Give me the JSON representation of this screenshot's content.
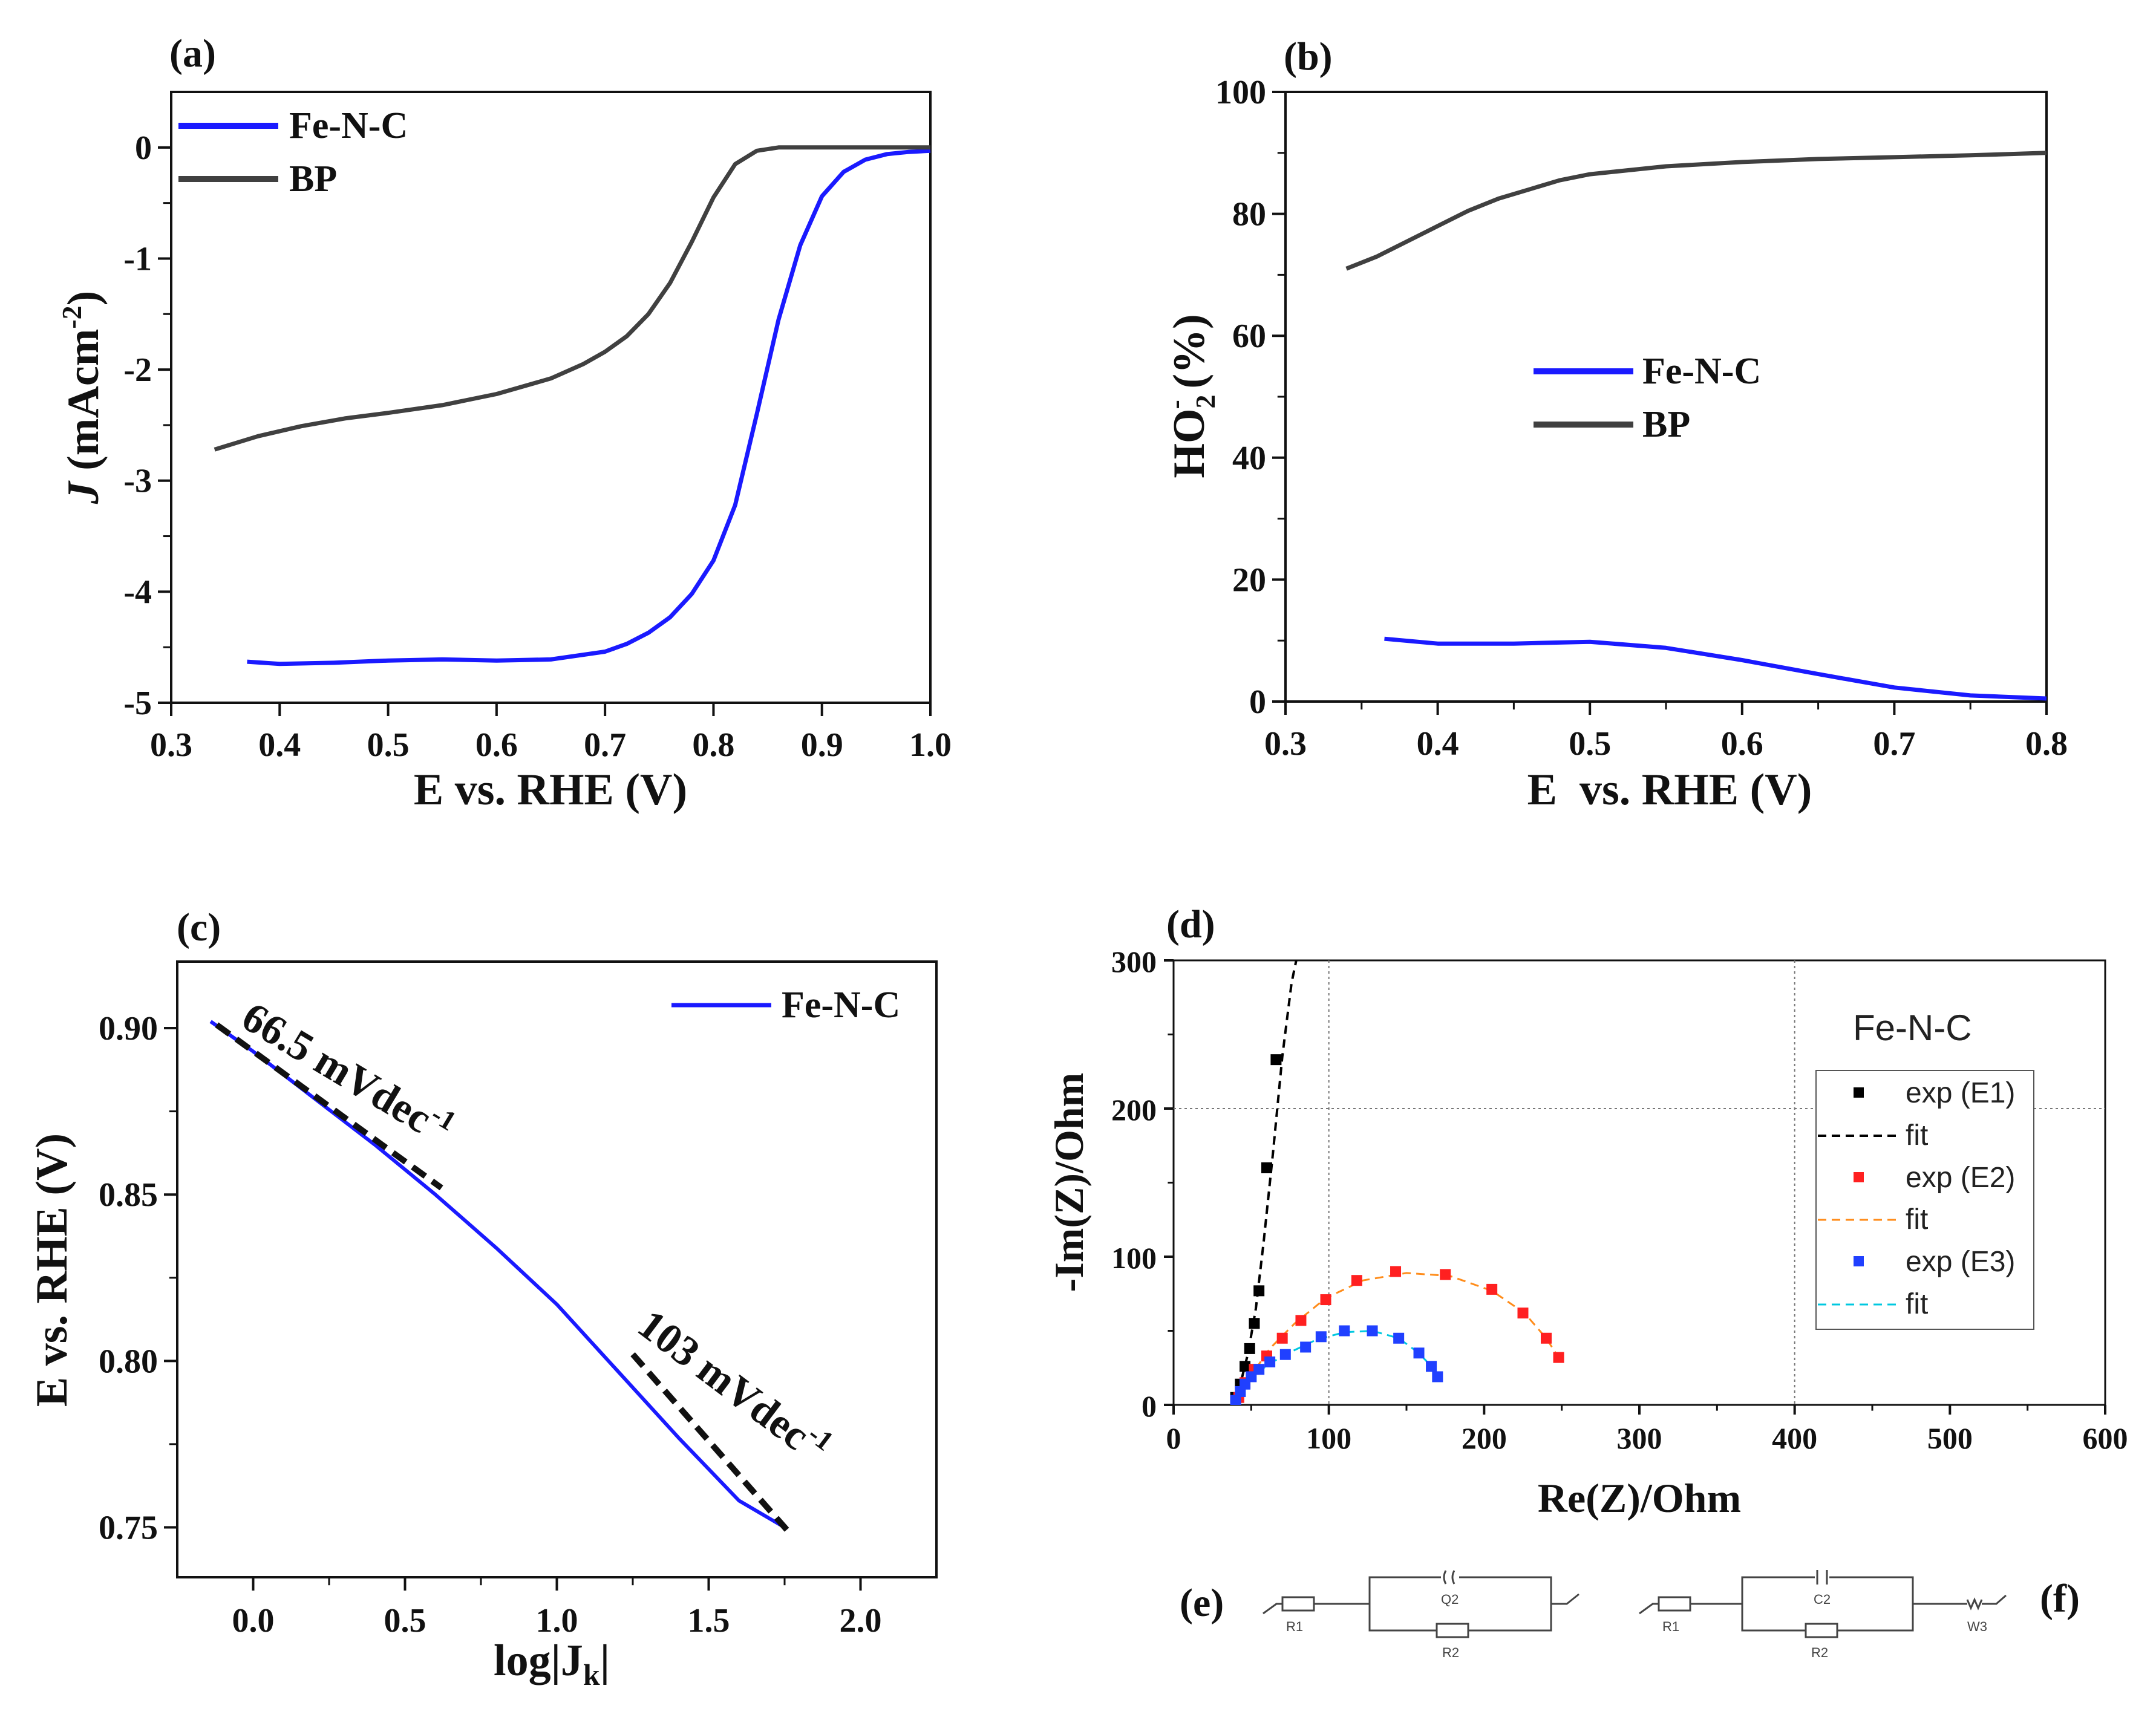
{
  "chart_data": [
    {
      "panel": "(a)",
      "type": "line",
      "xlabel": "E vs. RHE (V)",
      "ylabel": "J (mAcm-2)",
      "ylabel_parts": {
        "j": "J",
        "unit": " (mAcm",
        "sup": "-2",
        "close": ")"
      },
      "xlim": [
        0.3,
        1.0
      ],
      "ylim": [
        -5,
        0.5
      ],
      "xticks": [
        0.3,
        0.4,
        0.5,
        0.6,
        0.7,
        0.8,
        0.9,
        1.0
      ],
      "xtick_labels": [
        "0.3",
        "0.4",
        "0.5",
        "0.6",
        "0.7",
        "0.8",
        "0.9",
        "1.0"
      ],
      "yticks": [
        0,
        -1,
        -2,
        -3,
        -4,
        -5
      ],
      "ytick_labels": [
        "0",
        "-1",
        "-2",
        "-3",
        "-4",
        "-5"
      ],
      "legend_position": "top-left",
      "series": [
        {
          "name": "Fe-N-C",
          "color": "#1a1aff",
          "x": [
            0.37,
            0.4,
            0.45,
            0.5,
            0.55,
            0.6,
            0.65,
            0.7,
            0.72,
            0.74,
            0.76,
            0.78,
            0.8,
            0.82,
            0.84,
            0.86,
            0.88,
            0.9,
            0.92,
            0.94,
            0.96,
            0.98,
            1.0
          ],
          "y": [
            -4.63,
            -4.65,
            -4.64,
            -4.62,
            -4.61,
            -4.62,
            -4.61,
            -4.54,
            -4.47,
            -4.37,
            -4.23,
            -4.02,
            -3.72,
            -3.22,
            -2.4,
            -1.55,
            -0.88,
            -0.44,
            -0.22,
            -0.11,
            -0.06,
            -0.04,
            -0.03
          ]
        },
        {
          "name": "BP",
          "color": "#404040",
          "x": [
            0.34,
            0.38,
            0.42,
            0.46,
            0.5,
            0.55,
            0.6,
            0.65,
            0.68,
            0.7,
            0.72,
            0.74,
            0.76,
            0.78,
            0.8,
            0.82,
            0.84,
            0.86,
            0.88,
            0.9,
            0.95,
            1.0
          ],
          "y": [
            -2.72,
            -2.6,
            -2.51,
            -2.44,
            -2.39,
            -2.32,
            -2.22,
            -2.08,
            -1.95,
            -1.84,
            -1.7,
            -1.5,
            -1.22,
            -0.85,
            -0.45,
            -0.15,
            -0.03,
            0.0,
            0.0,
            0.0,
            0.0,
            0.0
          ]
        }
      ]
    },
    {
      "panel": "(b)",
      "type": "line",
      "xlabel": "E  vs. RHE (V)",
      "ylabel": "HO2- (%)",
      "ylabel_parts": {
        "ho": "HO",
        "sub": "2",
        "sup": "-",
        "unit": " (%)"
      },
      "xlim": [
        0.3,
        0.8
      ],
      "ylim": [
        0,
        100
      ],
      "xticks": [
        0.3,
        0.4,
        0.5,
        0.6,
        0.7,
        0.8
      ],
      "xtick_labels": [
        "0.3",
        "0.4",
        "0.5",
        "0.6",
        "0.7",
        "0.8"
      ],
      "yticks": [
        0,
        20,
        40,
        60,
        80,
        100
      ],
      "ytick_labels": [
        "0",
        "20",
        "40",
        "60",
        "80",
        "100"
      ],
      "legend_position": "center-left",
      "series": [
        {
          "name": "Fe-N-C",
          "color": "#1a1aff",
          "x": [
            0.365,
            0.4,
            0.45,
            0.5,
            0.55,
            0.6,
            0.65,
            0.7,
            0.75,
            0.8
          ],
          "y": [
            10.3,
            9.5,
            9.5,
            9.8,
            8.8,
            6.8,
            4.5,
            2.3,
            1.0,
            0.5
          ]
        },
        {
          "name": "BP",
          "color": "#404040",
          "x": [
            0.34,
            0.36,
            0.38,
            0.4,
            0.42,
            0.44,
            0.46,
            0.48,
            0.5,
            0.55,
            0.6,
            0.65,
            0.7,
            0.75,
            0.8
          ],
          "y": [
            71.0,
            73.0,
            75.5,
            78.0,
            80.5,
            82.5,
            84.0,
            85.5,
            86.5,
            87.8,
            88.5,
            89.0,
            89.3,
            89.6,
            90.0
          ]
        }
      ]
    },
    {
      "panel": "(c)",
      "type": "line",
      "xlabel": "log|Jk|",
      "xlabel_parts": {
        "main": "log|J",
        "sub": "k",
        "close": "|"
      },
      "ylabel": "E vs. RHE (V)",
      "xlim": [
        -0.25,
        2.25
      ],
      "ylim": [
        0.735,
        0.92
      ],
      "xticks": [
        0.0,
        0.5,
        1.0,
        1.5,
        2.0
      ],
      "xtick_labels": [
        "0.0",
        "0.5",
        "1.0",
        "1.5",
        "2.0"
      ],
      "yticks": [
        0.75,
        0.8,
        0.85,
        0.9
      ],
      "ytick_labels": [
        "0.75",
        "0.80",
        "0.85",
        "0.90"
      ],
      "legend_position": "top-right",
      "series": [
        {
          "name": "Fe-N-C",
          "color": "#1a1aff",
          "x": [
            -0.14,
            0.0,
            0.2,
            0.4,
            0.6,
            0.8,
            1.0,
            1.2,
            1.4,
            1.6,
            1.75
          ],
          "y": [
            0.902,
            0.893,
            0.879,
            0.865,
            0.85,
            0.834,
            0.817,
            0.797,
            0.777,
            0.758,
            0.75
          ]
        }
      ],
      "fits": [
        {
          "label": "66.5 mVdec-1",
          "text_main": "66.5 mVdec",
          "text_sup": "-1",
          "x": [
            -0.12,
            0.62
          ],
          "y": [
            0.901,
            0.852
          ]
        },
        {
          "label": "103 mVdec-1",
          "text_main": "103 mVdec",
          "text_sup": "-1",
          "x": [
            1.25,
            1.76
          ],
          "y": [
            0.802,
            0.749
          ]
        }
      ]
    },
    {
      "panel": "(d)",
      "type": "scatter",
      "xlabel": "Re(Z)/Ohm",
      "ylabel": "-Im(Z)/Ohm",
      "xlim": [
        0,
        600
      ],
      "ylim": [
        0,
        300
      ],
      "xticks": [
        0,
        100,
        200,
        300,
        400,
        500,
        600
      ],
      "xtick_labels": [
        "0",
        "100",
        "200",
        "300",
        "400",
        "500",
        "600"
      ],
      "yticks": [
        0,
        100,
        200,
        300
      ],
      "ytick_labels": [
        "0",
        "100",
        "200",
        "300"
      ],
      "grid": true,
      "legend_title": "Fe-N-C",
      "legend_position": "right",
      "series": [
        {
          "name": "exp (E1)",
          "color": "#000000",
          "x": [
            40,
            43,
            46,
            49,
            52,
            55,
            60,
            66
          ],
          "y": [
            5,
            14,
            26,
            38,
            55,
            77,
            160,
            233
          ]
        },
        {
          "name": "exp (E2)",
          "color": "#ff2020",
          "x": [
            42,
            46,
            52,
            60,
            70,
            82,
            98,
            118,
            143,
            175,
            205,
            225,
            240,
            248
          ],
          "y": [
            5,
            15,
            24,
            33,
            45,
            57,
            71,
            84,
            90,
            88,
            78,
            62,
            45,
            32
          ]
        },
        {
          "name": "exp (E3)",
          "color": "#2040ff",
          "x": [
            40,
            43,
            46,
            50,
            55,
            62,
            72,
            85,
            95,
            110,
            128,
            145,
            158,
            166,
            170
          ],
          "y": [
            3,
            9,
            14,
            19,
            24,
            29,
            34,
            39,
            46,
            50,
            50,
            45,
            35,
            26,
            19
          ]
        }
      ],
      "fits": [
        {
          "name": "fit",
          "color": "#000000",
          "x": [
            38,
            43,
            48,
            53,
            58,
            64,
            70,
            76,
            79
          ],
          "y": [
            0,
            14,
            35,
            65,
            110,
            170,
            235,
            285,
            300
          ]
        },
        {
          "name": "fit",
          "color": "#ff8c1a",
          "x": [
            40,
            50,
            62,
            78,
            98,
            122,
            150,
            178,
            205,
            226,
            240,
            248
          ],
          "y": [
            0,
            20,
            38,
            55,
            72,
            84,
            89,
            87,
            77,
            62,
            45,
            32
          ]
        },
        {
          "name": "fit",
          "color": "#00c8e0",
          "x": [
            38,
            44,
            52,
            62,
            76,
            92,
            110,
            128,
            145,
            158,
            166,
            170
          ],
          "y": [
            0,
            10,
            20,
            28,
            36,
            44,
            49,
            50,
            45,
            35,
            26,
            19
          ]
        }
      ]
    }
  ],
  "panel_labels": {
    "a": "(a)",
    "b": "(b)",
    "c": "(c)",
    "d": "(d)",
    "e": "(e)",
    "f": "(f)"
  },
  "circuits": {
    "e": {
      "r1": "R1",
      "q2": "Q2",
      "r2": "R2"
    },
    "f": {
      "r1": "R1",
      "c2": "C2",
      "r2": "R2",
      "w3": "W3"
    }
  }
}
